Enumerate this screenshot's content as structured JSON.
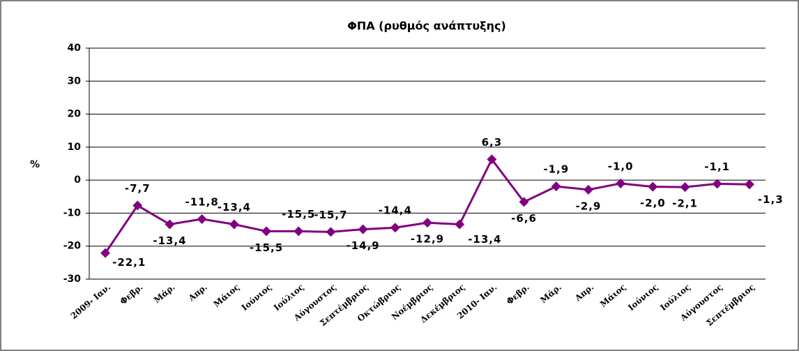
{
  "chart_data": {
    "type": "line",
    "title": "ΦΠΑ (ρυθμός ανάπτυξης)",
    "y_label": "%",
    "categories": [
      "2009- Ιαν.",
      "Φεβρ.",
      "Μάρ.",
      "Απρ.",
      "Μάιος",
      "Ιούνιος",
      "Ιούλιος",
      "Αύγουστος",
      "Σεπτέμβριος",
      "Οκτώβριος",
      "Νοέμβριος",
      "Δεκέμβριος",
      "2010- Ιαν.",
      "Φεβρ.",
      "Μάρ.",
      "Απρ.",
      "Μάιος",
      "Ιούνιος",
      "Ιούλιος",
      "Αύγουστος",
      "Σεπτέμβριος"
    ],
    "series": [
      {
        "color": "#800080",
        "values": [
          -22.1,
          -7.7,
          -13.4,
          -11.8,
          -13.4,
          -15.5,
          -15.5,
          -15.7,
          -14.9,
          -14.4,
          -12.9,
          -13.4,
          6.3,
          -6.6,
          -1.9,
          -2.9,
          -1.0,
          -2.0,
          -2.1,
          -1.1,
          -1.3
        ],
        "value_labels": [
          "-22,1",
          "-7,7",
          "-13,4",
          "-11,8",
          "-13,4",
          "-15,5",
          "-15,5",
          "-15,7",
          "-14,9",
          "-14,4",
          "-12,9",
          "-13,4",
          "6,3",
          "-6,6",
          "-1,9",
          "-2,9",
          "-1,0",
          "-2,0",
          "-2,1",
          "-1,1",
          "-1,3"
        ]
      }
    ],
    "ylim": [
      -30,
      40
    ],
    "yticks": [
      -30,
      -20,
      -10,
      0,
      10,
      20,
      30,
      40
    ],
    "grid": true
  }
}
